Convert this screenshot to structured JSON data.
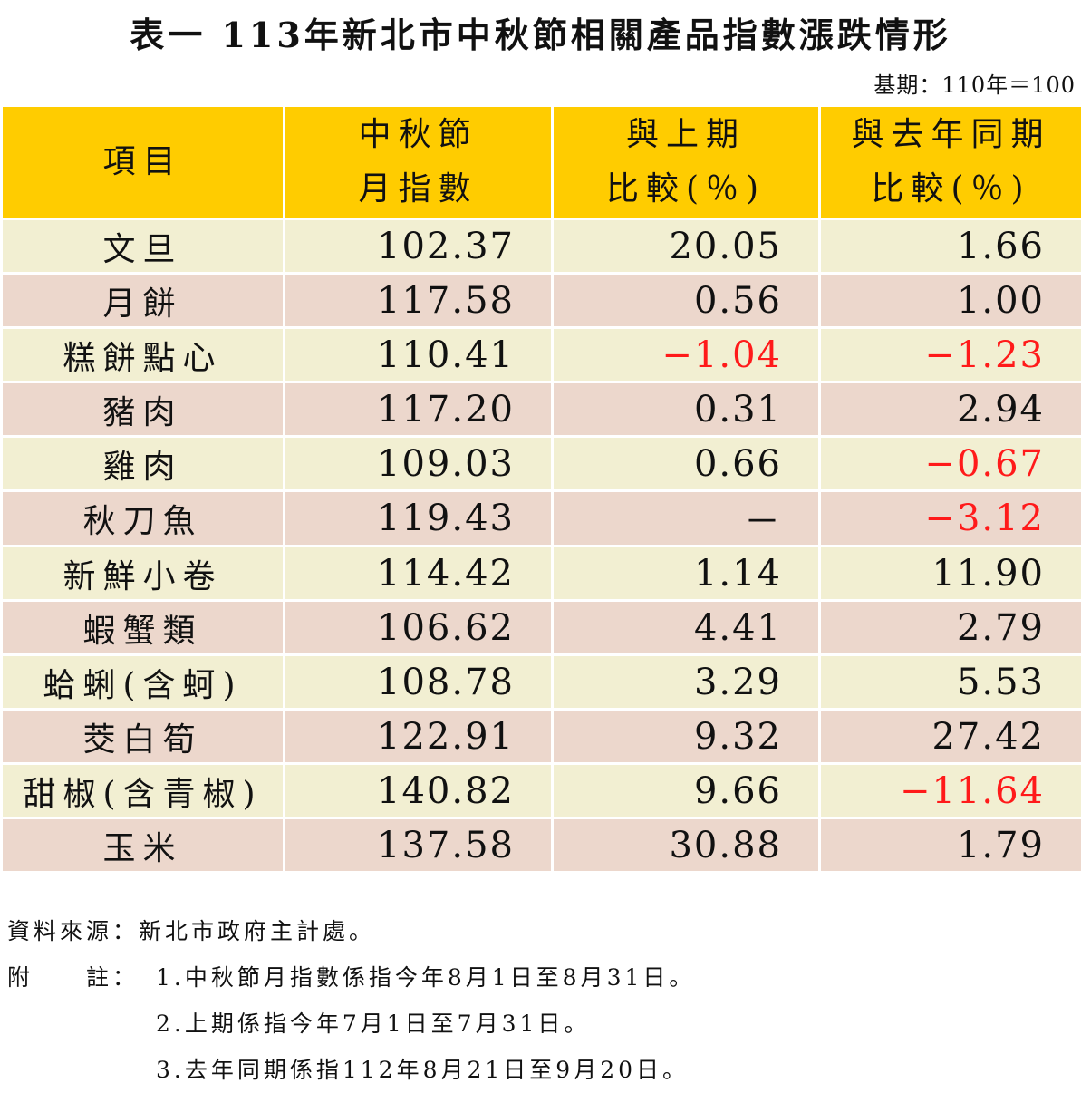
{
  "title": "表一 113年新北市中秋節相關產品指數漲跌情形",
  "base_period": "基期：110年＝100",
  "table": {
    "headers": [
      {
        "line1": "項目",
        "line2": ""
      },
      {
        "line1": "中秋節",
        "line2": "月指數"
      },
      {
        "line1": "與上期",
        "line2": "比較(％)"
      },
      {
        "line1": "與去年同期",
        "line2": "比較(％)"
      }
    ],
    "rows": [
      {
        "item": "文旦",
        "index": "102.37",
        "mom": "20.05",
        "yoy": "1.66"
      },
      {
        "item": "月餅",
        "index": "117.58",
        "mom": "0.56",
        "yoy": "1.00"
      },
      {
        "item": "糕餅點心",
        "index": "110.41",
        "mom": "-1.04",
        "yoy": "-1.23"
      },
      {
        "item": "豬肉",
        "index": "117.20",
        "mom": "0.31",
        "yoy": "2.94"
      },
      {
        "item": "雞肉",
        "index": "109.03",
        "mom": "0.66",
        "yoy": "-0.67"
      },
      {
        "item": "秋刀魚",
        "index": "119.43",
        "mom": "-",
        "yoy": "-3.12"
      },
      {
        "item": "新鮮小卷",
        "index": "114.42",
        "mom": "1.14",
        "yoy": "11.90"
      },
      {
        "item": "蝦蟹類",
        "index": "106.62",
        "mom": "4.41",
        "yoy": "2.79"
      },
      {
        "item": "蛤蜊(含蚵)",
        "index": "108.78",
        "mom": "3.29",
        "yoy": "5.53"
      },
      {
        "item": "茭白筍",
        "index": "122.91",
        "mom": "9.32",
        "yoy": "27.42"
      },
      {
        "item": "甜椒(含青椒)",
        "index": "140.82",
        "mom": "9.66",
        "yoy": "-11.64"
      },
      {
        "item": "玉米",
        "index": "137.58",
        "mom": "30.88",
        "yoy": "1.79"
      }
    ]
  },
  "notes": {
    "source": "資料來源：新北市政府主計處。",
    "note_label": "附　　註：",
    "items": [
      "1.中秋節月指數係指今年8月1日至8月31日。",
      "2.上期係指今年7月1日至7月31日。",
      "3.去年同期係指112年8月21日至9月20日。"
    ]
  },
  "colors": {
    "header_bg": "#ffcc00",
    "row_odd_bg": "#f2efd2",
    "row_even_bg": "#ecd7cc",
    "negative": "#ff1a1a"
  }
}
